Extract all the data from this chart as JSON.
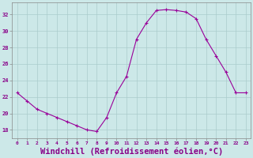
{
  "x": [
    0,
    1,
    2,
    3,
    4,
    5,
    6,
    7,
    8,
    9,
    10,
    11,
    12,
    13,
    14,
    15,
    16,
    17,
    18,
    19,
    20,
    21,
    22,
    23
  ],
  "y": [
    22.5,
    21.5,
    20.5,
    20.0,
    19.5,
    19.0,
    18.5,
    18.0,
    17.8,
    19.5,
    22.5,
    24.5,
    29.0,
    31.0,
    32.5,
    32.6,
    32.5,
    32.3,
    31.5,
    29.0,
    27.0,
    25.0,
    22.5,
    22.5
  ],
  "line_color": "#990099",
  "marker": "+",
  "marker_size": 3,
  "bg_color": "#cce8e8",
  "grid_color": "#aacccc",
  "xlabel": "Windchill (Refroidissement éolien,°C)",
  "xlabel_fontsize": 7.5,
  "ylabel_ticks": [
    18,
    20,
    22,
    24,
    26,
    28,
    30,
    32
  ],
  "xtick_labels": [
    "0",
    "1",
    "2",
    "3",
    "4",
    "5",
    "6",
    "7",
    "8",
    "9",
    "10",
    "11",
    "12",
    "13",
    "14",
    "15",
    "16",
    "17",
    "18",
    "19",
    "20",
    "21",
    "22",
    "23"
  ],
  "ylim": [
    17.0,
    33.5
  ],
  "xlim": [
    -0.5,
    23.5
  ],
  "spine_color": "#888888",
  "tick_color": "#888888",
  "label_color": "#880088"
}
